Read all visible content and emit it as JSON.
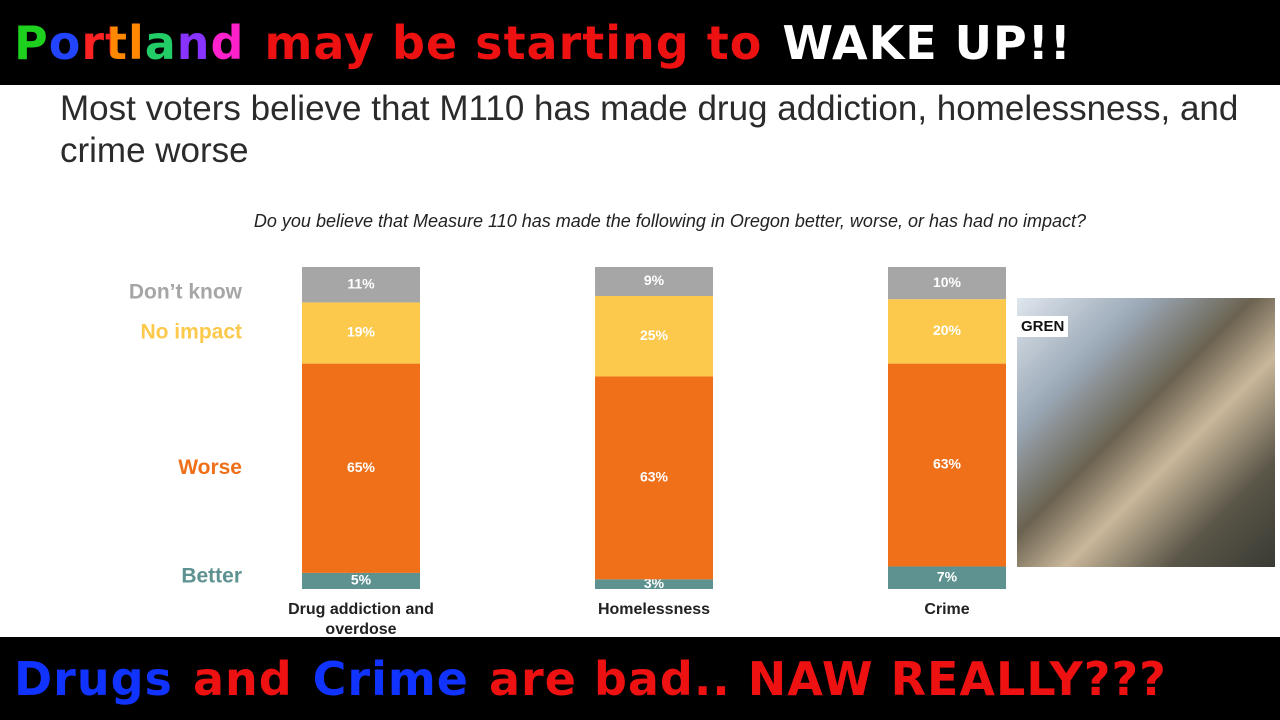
{
  "header": {
    "segments": [
      "Portland",
      "may be starting to",
      "WAKE UP!!"
    ]
  },
  "footer": {
    "segments": [
      "Drugs",
      "and",
      "Crime",
      "are bad.. NAW REALLY???"
    ]
  },
  "photo": {
    "caption": "GREN"
  },
  "chart_data": {
    "type": "stacked-bar",
    "title": "Most voters believe that M110 has made drug addiction, homelessness, and crime worse",
    "subtitle": "Do you believe that Measure 110 has made the following in Oregon better, worse, or has had no impact?",
    "categories": [
      "Drug addiction and overdose",
      "Homelessness",
      "Crime"
    ],
    "series": [
      {
        "name": "Better",
        "color": "#5e9290",
        "values": [
          5,
          3,
          7
        ],
        "value_labels": [
          "5%",
          "3%",
          "7%"
        ]
      },
      {
        "name": "Worse",
        "color": "#f07019",
        "values": [
          65,
          63,
          63
        ],
        "value_labels": [
          "65%",
          "63%",
          "63%"
        ]
      },
      {
        "name": "No impact",
        "color": "#fcc94c",
        "values": [
          19,
          25,
          20
        ],
        "value_labels": [
          "19%",
          "25%",
          "20%"
        ]
      },
      {
        "name": "Don’t know",
        "color": "#a6a6a6",
        "values": [
          11,
          9,
          10
        ],
        "value_labels": [
          "11%",
          "9%",
          "10%"
        ]
      }
    ]
  }
}
